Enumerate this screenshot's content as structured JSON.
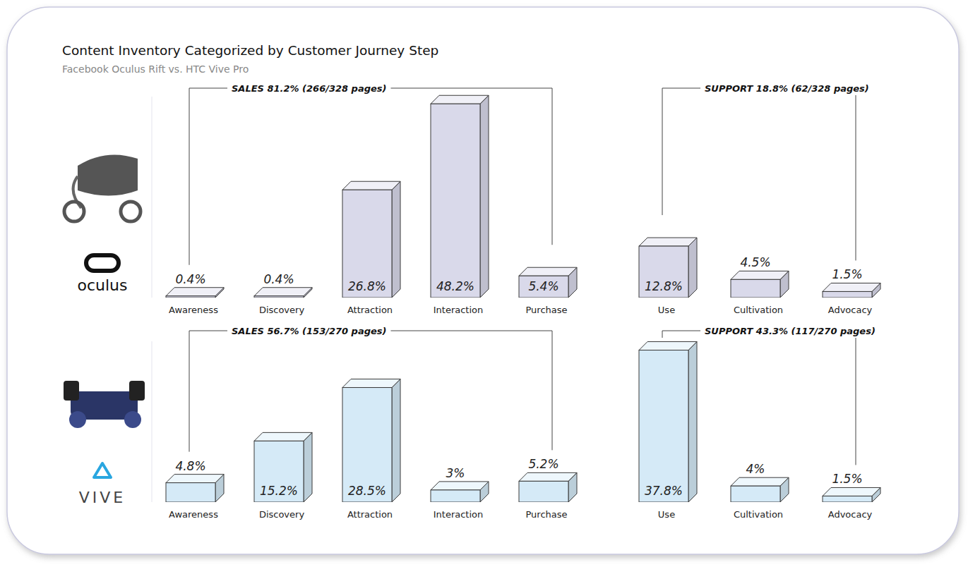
{
  "header": {
    "title": "Content Inventory Categorized by Customer Journey Step",
    "subtitle": "Facebook Oculus Rift vs. HTC Vive Pro"
  },
  "chart_data": [
    {
      "type": "bar",
      "title": "oculus",
      "categories": [
        "Awareness",
        "Discovery",
        "Attraction",
        "Interaction",
        "Purchase",
        "Use",
        "Cultivation",
        "Advocacy"
      ],
      "values": [
        0.4,
        0.4,
        26.8,
        48.2,
        5.4,
        12.8,
        4.5,
        1.5
      ],
      "value_labels": [
        "0.4%",
        "0.4%",
        "26.8%",
        "48.2%",
        "5.4%",
        "12.8%",
        "4.5%",
        "1.5%"
      ],
      "color": "#d9d9ea",
      "ylim": [
        0,
        50
      ],
      "data_labels": true,
      "tick_labels": false,
      "groups": [
        {
          "label": "SALES 81.2% (266/328 pages)",
          "categories": [
            "Awareness",
            "Discovery",
            "Attraction",
            "Interaction",
            "Purchase"
          ]
        },
        {
          "label": "SUPPORT 18.8% (62/328 pages)",
          "categories": [
            "Use",
            "Cultivation",
            "Advocacy"
          ]
        }
      ]
    },
    {
      "type": "bar",
      "title": "VIVE",
      "categories": [
        "Awareness",
        "Discovery",
        "Attraction",
        "Interaction",
        "Purchase",
        "Use",
        "Cultivation",
        "Advocacy"
      ],
      "values": [
        4.8,
        15.2,
        28.5,
        3,
        5.2,
        37.8,
        4,
        1.5
      ],
      "value_labels": [
        "4.8%",
        "15.2%",
        "28.5%",
        "3%",
        "5.2%",
        "37.8%",
        "4%",
        "1.5%"
      ],
      "color": "#d5eaf7",
      "ylim": [
        0,
        40
      ],
      "data_labels": true,
      "tick_labels": false,
      "groups": [
        {
          "label": "SALES 56.7% (153/270 pages)",
          "categories": [
            "Awareness",
            "Discovery",
            "Attraction",
            "Interaction",
            "Purchase"
          ]
        },
        {
          "label": "SUPPORT 43.3% (117/270 pages)",
          "categories": [
            "Use",
            "Cultivation",
            "Advocacy"
          ]
        }
      ]
    }
  ]
}
